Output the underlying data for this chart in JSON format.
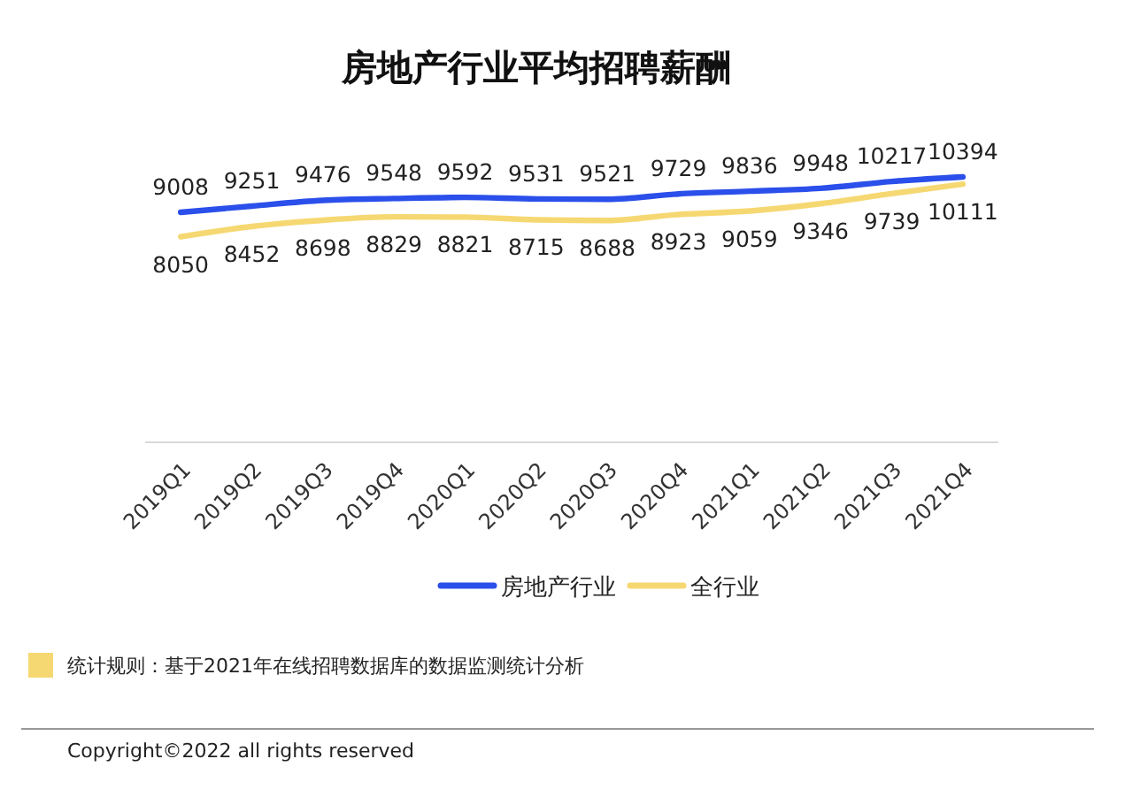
{
  "chart_data": {
    "type": "line",
    "title": "房地产行业平均招聘薪酬",
    "categories": [
      "2019Q1",
      "2019Q2",
      "2019Q3",
      "2019Q4",
      "2020Q1",
      "2020Q2",
      "2020Q3",
      "2020Q4",
      "2021Q1",
      "2021Q2",
      "2021Q3",
      "2021Q4"
    ],
    "series": [
      {
        "name": "房地产行业",
        "color": "#2b4fea",
        "values": [
          9008,
          9251,
          9476,
          9548,
          9592,
          9531,
          9521,
          9729,
          9836,
          9948,
          10217,
          10394
        ]
      },
      {
        "name": "全行业",
        "color": "#f6d872",
        "values": [
          8050,
          8452,
          8698,
          8829,
          8821,
          8715,
          8688,
          8923,
          9059,
          9346,
          9739,
          10111
        ]
      }
    ],
    "data_labels": true,
    "legend": "bottom",
    "tick_labels": "x",
    "annotations": [
      "统计规则：基于2021年在线招聘数据库的数据监测统计分析",
      "Copyright©2022 all rights reserved"
    ]
  }
}
